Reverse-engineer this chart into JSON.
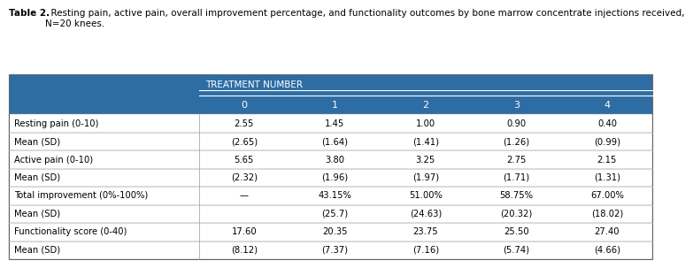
{
  "caption_bold": "Table 2.",
  "caption_rest": "  Resting pain, active pain, overall improvement percentage, and functionality outcomes by bone marrow concentrate injections received,\nN=20 knees.",
  "header_group": "TREATMENT NUMBER",
  "col_headers": [
    "0",
    "1",
    "2",
    "3",
    "4"
  ],
  "row_labels": [
    "Resting pain (0-10)",
    "Mean (SD)",
    "Active pain (0-10)",
    "Mean (SD)",
    "Total improvement (0%-100%)",
    "Mean (SD)",
    "Functionality score (0-40)",
    "Mean (SD)"
  ],
  "table_data": [
    [
      "2.55",
      "1.45",
      "1.00",
      "0.90",
      "0.40"
    ],
    [
      "(2.65)",
      "(1.64)",
      "(1.41)",
      "(1.26)",
      "(0.99)"
    ],
    [
      "5.65",
      "3.80",
      "3.25",
      "2.75",
      "2.15"
    ],
    [
      "(2.32)",
      "(1.96)",
      "(1.97)",
      "(1.71)",
      "(1.31)"
    ],
    [
      "—",
      "43.15%",
      "51.00%",
      "58.75%",
      "67.00%"
    ],
    [
      "",
      "(25.7)",
      "(24.63)",
      "(20.32)",
      "(18.02)"
    ],
    [
      "17.60",
      "20.35",
      "23.75",
      "25.50",
      "27.40"
    ],
    [
      "(8.12)",
      "(7.37)",
      "(7.16)",
      "(5.74)",
      "(4.66)"
    ]
  ],
  "header_bg": "#2E6DA4",
  "header_text_color": "#FFFFFF",
  "subheader_bg": "#2E6DA4",
  "row_bg_odd": "#FFFFFF",
  "row_bg_even": "#FFFFFF",
  "border_color": "#AAAAAA",
  "text_color": "#000000",
  "caption_color": "#000000",
  "table_border_color": "#555555"
}
